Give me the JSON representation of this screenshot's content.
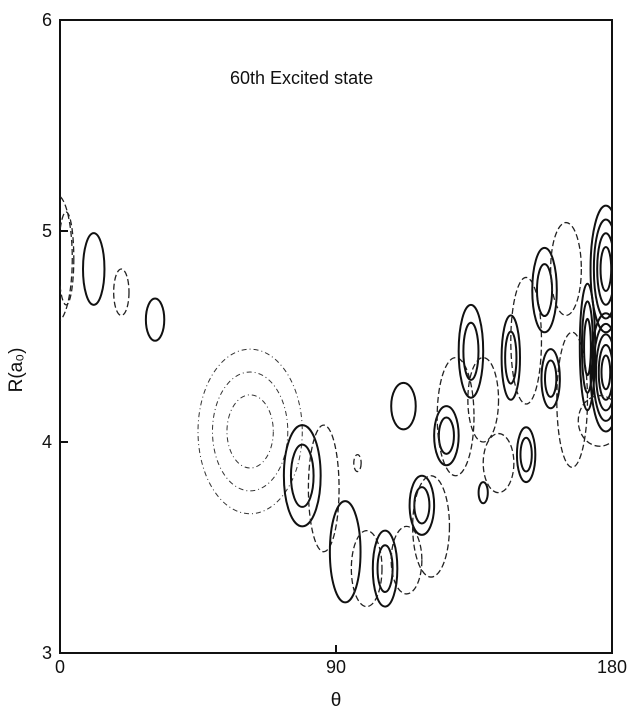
{
  "chart_data": {
    "type": "contour",
    "title": "",
    "annotation": "60th Excited state",
    "xlabel": "θ",
    "ylabel": "R(a₀)",
    "xlim": [
      0,
      180
    ],
    "ylim": [
      3,
      6
    ],
    "xticks": [
      0,
      90,
      180
    ],
    "yticks": [
      3,
      4,
      5,
      6
    ],
    "x_tick_labels": [
      "0",
      "90",
      "180"
    ],
    "y_tick_labels": [
      "3",
      "4",
      "5",
      "6"
    ],
    "grid": false,
    "legend": "none",
    "contour_styles": {
      "solid": "positive lobes",
      "dashed": "negative lobes",
      "dashdot": "low-amplitude lobes"
    },
    "lobes": [
      {
        "theta": -1,
        "R": 4.87,
        "rtheta": 5,
        "rR": 0.3,
        "sign": "dashed",
        "levels": 1
      },
      {
        "theta": 2,
        "R": 4.87,
        "rtheta": 2.5,
        "rR": 0.22,
        "sign": "dashed",
        "levels": 1
      },
      {
        "theta": 11,
        "R": 4.82,
        "rtheta": 3.5,
        "rR": 0.17,
        "sign": "solid",
        "levels": 1
      },
      {
        "theta": 20,
        "R": 4.71,
        "rtheta": 2.5,
        "rR": 0.11,
        "sign": "dashed",
        "levels": 1
      },
      {
        "theta": 31,
        "R": 4.58,
        "rtheta": 3,
        "rR": 0.1,
        "sign": "solid",
        "levels": 1
      },
      {
        "theta": 62,
        "R": 4.05,
        "rtheta": 17,
        "rR": 0.39,
        "sign": "dashdot",
        "levels": 3
      },
      {
        "theta": 79,
        "R": 3.84,
        "rtheta": 6,
        "rR": 0.24,
        "sign": "solid",
        "levels": 2
      },
      {
        "theta": 86,
        "R": 3.78,
        "rtheta": 5,
        "rR": 0.3,
        "sign": "dashed",
        "levels": 1
      },
      {
        "theta": 93,
        "R": 3.48,
        "rtheta": 5,
        "rR": 0.24,
        "sign": "solid",
        "levels": 1
      },
      {
        "theta": 100,
        "R": 3.4,
        "rtheta": 5,
        "rR": 0.18,
        "sign": "dashed",
        "levels": 1
      },
      {
        "theta": 106,
        "R": 3.4,
        "rtheta": 4,
        "rR": 0.18,
        "sign": "solid",
        "levels": 2
      },
      {
        "theta": 113,
        "R": 3.44,
        "rtheta": 5,
        "rR": 0.16,
        "sign": "dashed",
        "levels": 1
      },
      {
        "theta": 112,
        "R": 4.17,
        "rtheta": 4,
        "rR": 0.11,
        "sign": "solid",
        "levels": 1
      },
      {
        "theta": 118,
        "R": 3.7,
        "rtheta": 4,
        "rR": 0.14,
        "sign": "solid",
        "levels": 2
      },
      {
        "theta": 121,
        "R": 3.6,
        "rtheta": 6,
        "rR": 0.24,
        "sign": "dashed",
        "levels": 1
      },
      {
        "theta": 126,
        "R": 4.03,
        "rtheta": 4,
        "rR": 0.14,
        "sign": "solid",
        "levels": 2
      },
      {
        "theta": 129,
        "R": 4.12,
        "rtheta": 6,
        "rR": 0.28,
        "sign": "dashed",
        "levels": 1
      },
      {
        "theta": 134,
        "R": 4.43,
        "rtheta": 4,
        "rR": 0.22,
        "sign": "solid",
        "levels": 2
      },
      {
        "theta": 138,
        "R": 4.2,
        "rtheta": 5,
        "rR": 0.2,
        "sign": "dashed",
        "levels": 1
      },
      {
        "theta": 143,
        "R": 3.9,
        "rtheta": 5,
        "rR": 0.14,
        "sign": "dashed",
        "levels": 1
      },
      {
        "theta": 147,
        "R": 4.4,
        "rtheta": 3,
        "rR": 0.2,
        "sign": "solid",
        "levels": 2
      },
      {
        "theta": 152,
        "R": 3.94,
        "rtheta": 3,
        "rR": 0.13,
        "sign": "solid",
        "levels": 2
      },
      {
        "theta": 152,
        "R": 4.48,
        "rtheta": 5,
        "rR": 0.3,
        "sign": "dashed",
        "levels": 1
      },
      {
        "theta": 158,
        "R": 4.72,
        "rtheta": 4,
        "rR": 0.2,
        "sign": "solid",
        "levels": 2
      },
      {
        "theta": 160,
        "R": 4.3,
        "rtheta": 3,
        "rR": 0.14,
        "sign": "solid",
        "levels": 2
      },
      {
        "theta": 165,
        "R": 4.82,
        "rtheta": 5,
        "rR": 0.22,
        "sign": "dashed",
        "levels": 1
      },
      {
        "theta": 167,
        "R": 4.2,
        "rtheta": 5,
        "rR": 0.32,
        "sign": "dashed",
        "levels": 1
      },
      {
        "theta": 172,
        "R": 4.45,
        "rtheta": 2.5,
        "rR": 0.3,
        "sign": "solid",
        "levels": 3
      },
      {
        "theta": 178,
        "R": 4.82,
        "rtheta": 5,
        "rR": 0.3,
        "sign": "solid",
        "levels": 4
      },
      {
        "theta": 178,
        "R": 4.33,
        "rtheta": 5,
        "rR": 0.28,
        "sign": "solid",
        "levels": 5
      },
      {
        "theta": 176,
        "R": 4.1,
        "rtheta": 7,
        "rR": 0.12,
        "sign": "dashed",
        "levels": 1
      },
      {
        "theta": 138,
        "R": 3.76,
        "rtheta": 1.5,
        "rR": 0.05,
        "sign": "solid",
        "levels": 1
      },
      {
        "theta": 97,
        "R": 3.9,
        "rtheta": 1.2,
        "rR": 0.04,
        "sign": "dashed",
        "levels": 1
      }
    ]
  }
}
